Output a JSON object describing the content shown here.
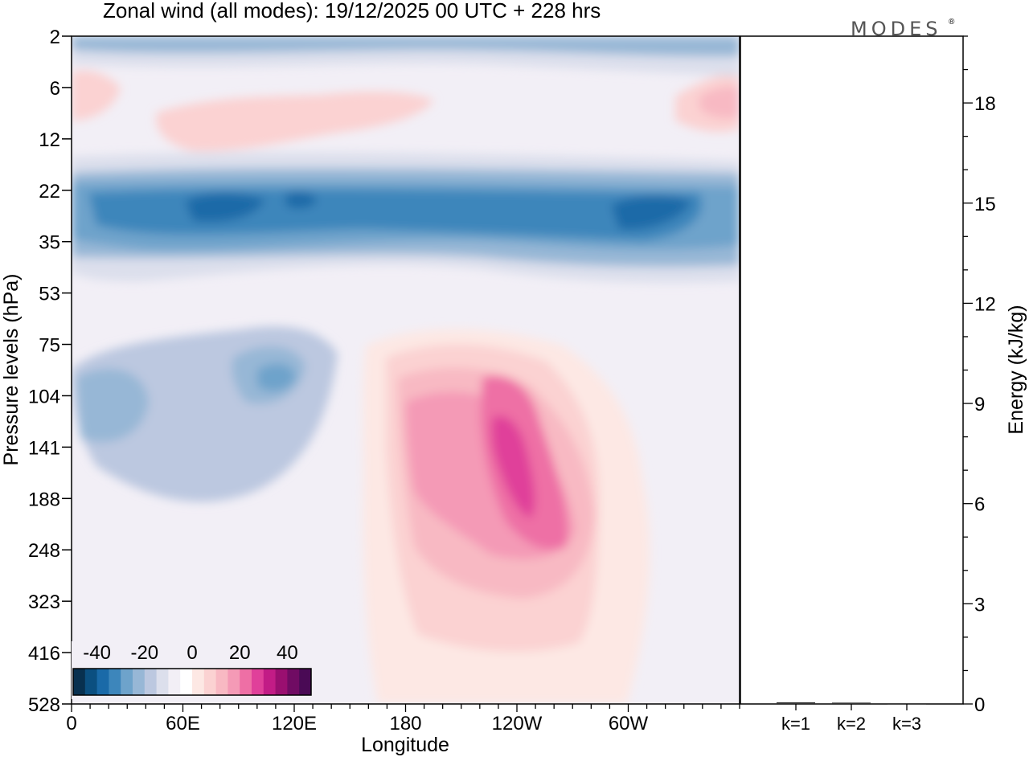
{
  "header": {
    "title": "Zonal wind (all modes):  19/12/2025  00 UTC  + 228 hrs",
    "logo": "MODES",
    "logo_mark": "®"
  },
  "chart_data": [
    {
      "type": "heatmap",
      "title": "Zonal wind (all modes):  19/12/2025  00 UTC  + 228 hrs",
      "xlabel": "Longitude",
      "ylabel": "Pressure levels (hPa)",
      "x_ticks": [
        "0",
        "60E",
        "120E",
        "180",
        "120W",
        "60W"
      ],
      "x_tick_values": [
        0,
        60,
        120,
        180,
        240,
        300
      ],
      "x_range": [
        0,
        360
      ],
      "y_ticks": [
        "2",
        "6",
        "12",
        "22",
        "35",
        "53",
        "75",
        "104",
        "141",
        "188",
        "248",
        "323",
        "416",
        "528"
      ],
      "colorbar": {
        "tick_labels": [
          "-40",
          "-20",
          "0",
          "20",
          "40"
        ],
        "tick_values": [
          -40,
          -20,
          0,
          20,
          40
        ],
        "range": [
          -50,
          50
        ],
        "step": 5,
        "colors": [
          "#08304f",
          "#0b4f80",
          "#1a6aa8",
          "#3d86bb",
          "#6ea3cb",
          "#97b7d6",
          "#bcc8e0",
          "#dcdfec",
          "#f2eff6",
          "#ffffff",
          "#fde8e4",
          "#fbd2d2",
          "#f8b9c3",
          "#f49ab6",
          "#ee6fa5",
          "#e0409a",
          "#c21c86",
          "#9a0f70",
          "#700b63",
          "#4a0a55"
        ]
      },
      "features": [
        {
          "name": "stratospheric easterly jet",
          "lon_range": [
            0,
            360
          ],
          "level_range": [
            "22",
            "35"
          ],
          "min_value": -30
        },
        {
          "name": "upper tropospheric westerly maximum",
          "lon_center": 225,
          "level_range": [
            "104",
            "248"
          ],
          "max_value": 25
        },
        {
          "name": "upper stratospheric westerlies",
          "lon_range": [
            40,
            190
          ],
          "level_range": [
            "6",
            "12"
          ],
          "max_value": 10
        }
      ]
    },
    {
      "type": "bar",
      "categories": [
        "k=1",
        "k=2",
        "k=3"
      ],
      "values": [
        0.05,
        0.04,
        0.02
      ],
      "ylabel": "Energy (kJ/kg)",
      "y_ticks": [
        "0",
        "3",
        "6",
        "9",
        "12",
        "15",
        "18"
      ],
      "ylim": [
        0,
        20
      ]
    }
  ]
}
